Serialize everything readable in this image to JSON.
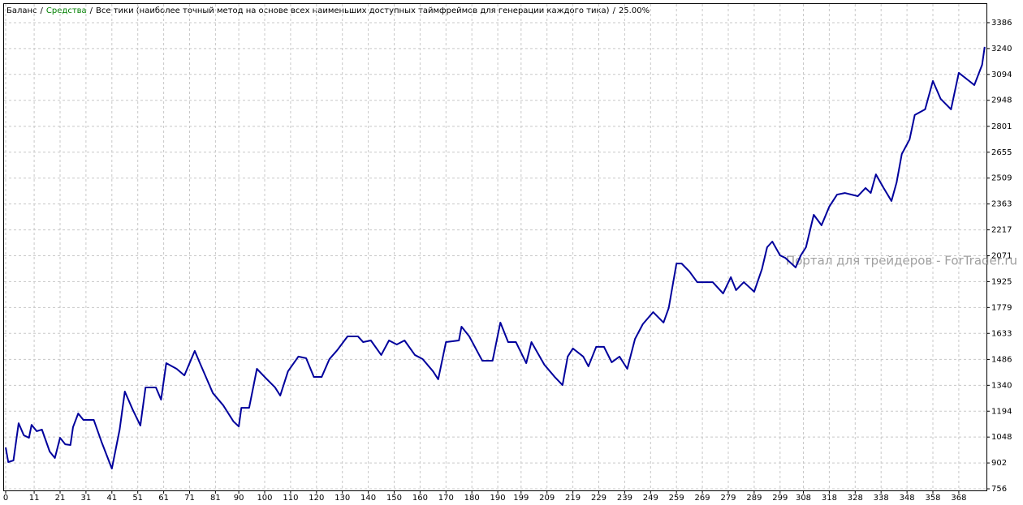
{
  "chart_data": {
    "type": "line",
    "header": [
      {
        "text": "Баланс",
        "color": "#000000"
      },
      {
        "text": "Средства",
        "color": "#008000"
      },
      {
        "text": "Все тики (наиболее точный метод на основе всех наименьших доступных таймфреймов для генерации каждого тика)",
        "color": "#000000"
      },
      {
        "text": "25.00%",
        "color": "#000000"
      }
    ],
    "header_separator": "/",
    "watermark": "Портал для трейдеров - ForTrader.ru",
    "grid": true,
    "series": [
      {
        "name": "Баланс",
        "color": "#00009c",
        "x": [
          0,
          1,
          3,
          5,
          7,
          9,
          10,
          12,
          14,
          17,
          19,
          21,
          23,
          25,
          26,
          28,
          30,
          34,
          37,
          41,
          44,
          46,
          49,
          52,
          54,
          58,
          60,
          62,
          66,
          69,
          71,
          73,
          75,
          80,
          84,
          88,
          90,
          91,
          94,
          97,
          100,
          104,
          106,
          109,
          113,
          116,
          119,
          122,
          125,
          128,
          132,
          136,
          138,
          141,
          145,
          148,
          151,
          154,
          158,
          161,
          165,
          167,
          170,
          175,
          176,
          179,
          184,
          188,
          191,
          194,
          197,
          201,
          203,
          208,
          212,
          215,
          217,
          219,
          223,
          225,
          228,
          231,
          234,
          237,
          240,
          243,
          246,
          250,
          254,
          256,
          259,
          261,
          264,
          267,
          273,
          277,
          280,
          282,
          285,
          289,
          292,
          294,
          296,
          299,
          301,
          305,
          307,
          309,
          312,
          315,
          318,
          321,
          324,
          329,
          332,
          334,
          336,
          339,
          342,
          344,
          346,
          349,
          351,
          355,
          358,
          361,
          365,
          368,
          372,
          374,
          377,
          378
        ],
        "values": [
          989,
          907,
          916,
          1126,
          1058,
          1044,
          1117,
          1081,
          1090,
          966,
          930,
          1044,
          1007,
          1003,
          1104,
          1181,
          1145,
          1145,
          1021,
          870,
          1090,
          1305,
          1204,
          1113,
          1328,
          1328,
          1259,
          1465,
          1433,
          1396,
          1465,
          1534,
          1465,
          1296,
          1227,
          1135,
          1108,
          1213,
          1213,
          1433,
          1387,
          1328,
          1282,
          1419,
          1502,
          1493,
          1387,
          1387,
          1488,
          1538,
          1616,
          1616,
          1584,
          1593,
          1511,
          1593,
          1570,
          1593,
          1511,
          1488,
          1419,
          1374,
          1584,
          1593,
          1671,
          1616,
          1479,
          1479,
          1694,
          1584,
          1584,
          1465,
          1584,
          1456,
          1387,
          1341,
          1502,
          1548,
          1502,
          1447,
          1557,
          1557,
          1470,
          1502,
          1433,
          1602,
          1685,
          1753,
          1694,
          1776,
          2027,
          2027,
          1982,
          1922,
          1922,
          1858,
          1950,
          1877,
          1922,
          1868,
          1996,
          2119,
          2151,
          2073,
          2059,
          2005,
          2073,
          2119,
          2302,
          2243,
          2348,
          2416,
          2425,
          2407,
          2453,
          2425,
          2530,
          2453,
          2380,
          2485,
          2645,
          2727,
          2865,
          2897,
          3057,
          2956,
          2897,
          3103,
          3057,
          3034,
          3148,
          3249
        ]
      }
    ],
    "xlim": [
      0,
      379
    ],
    "xticks": [
      0,
      11,
      21,
      31,
      41,
      51,
      61,
      71,
      81,
      90,
      100,
      110,
      120,
      130,
      140,
      150,
      160,
      170,
      180,
      190,
      199,
      209,
      219,
      229,
      239,
      249,
      259,
      269,
      279,
      289,
      299,
      308,
      318,
      328,
      338,
      348,
      358,
      368
    ],
    "ylim": [
      747,
      3491
    ],
    "yticks": [
      756,
      902,
      1048,
      1194,
      1340,
      1486,
      1633,
      1779,
      1925,
      2071,
      2217,
      2363,
      2509,
      2655,
      2801,
      2948,
      3094,
      3240,
      3386
    ]
  }
}
